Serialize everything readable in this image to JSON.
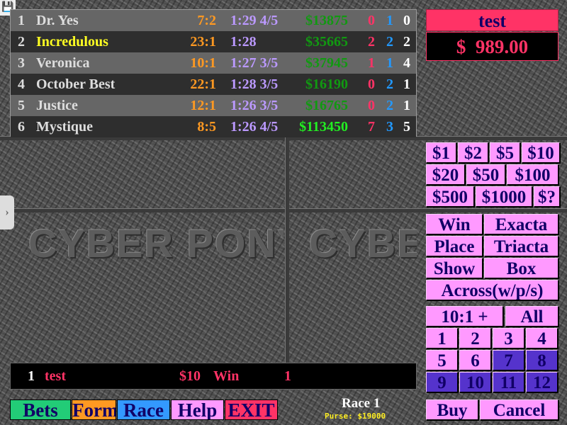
{
  "horses": [
    {
      "num": "1",
      "name": "Dr. Yes",
      "odds": "7:2",
      "time": "1:29 4/5",
      "purse": "$13875",
      "wins": "0",
      "places": "1",
      "shows": "0"
    },
    {
      "num": "2",
      "name": "Incredulous",
      "odds": "23:1",
      "time": "1:28",
      "purse": "$35665",
      "wins": "2",
      "places": "2",
      "shows": "2"
    },
    {
      "num": "3",
      "name": "Veronica",
      "odds": "10:1",
      "time": "1:27 3/5",
      "purse": "$37945",
      "wins": "1",
      "places": "1",
      "shows": "4"
    },
    {
      "num": "4",
      "name": "October Best",
      "odds": "22:1",
      "time": "1:28 3/5",
      "purse": "$16190",
      "wins": "0",
      "places": "2",
      "shows": "1"
    },
    {
      "num": "5",
      "name": "Justice",
      "odds": "12:1",
      "time": "1:26 3/5",
      "purse": "$16765",
      "wins": "0",
      "places": "2",
      "shows": "1"
    },
    {
      "num": "6",
      "name": "Mystique",
      "odds": "8:5",
      "time": "1:26 4/5",
      "purse": "$113450",
      "wins": "7",
      "places": "3",
      "shows": "5"
    }
  ],
  "player": {
    "name": "test",
    "balance": "$  989.00"
  },
  "amounts": [
    [
      "$1",
      "$2",
      "$5",
      "$10"
    ],
    [
      "$20",
      "$50",
      "$100"
    ],
    [
      "$500",
      "$1000",
      "$?"
    ]
  ],
  "bet_types": {
    "win": "Win",
    "exacta": "Exacta",
    "place": "Place",
    "triacta": "Triacta",
    "show": "Show",
    "box": "Box",
    "across": "Across(w/p/s)"
  },
  "selection": {
    "longshots": "10:1 +",
    "all": "All",
    "horses": [
      "1",
      "2",
      "3",
      "4",
      "5",
      "6",
      "7",
      "8",
      "9",
      "10",
      "11",
      "12"
    ],
    "selected": [
      "7",
      "8",
      "9",
      "10",
      "11",
      "12"
    ]
  },
  "actions": {
    "buy": "Buy",
    "cancel": "Cancel"
  },
  "bet_slip": {
    "num": "1",
    "player": "test",
    "amount": "$10",
    "type": "Win",
    "horse": "1"
  },
  "nav": {
    "bets": "Bets",
    "form": "Form",
    "race": "Race",
    "help": "Help",
    "exit": "EXIT"
  },
  "race": {
    "label": "Race 1",
    "purse": "Purse: $19000"
  },
  "logo": "CYBER PONY",
  "colors": {
    "accent": "#ff3366",
    "button": "#ff99ff",
    "selected": "#5533cc",
    "bets": "#22cc77",
    "form": "#ff9922",
    "race": "#3399ff"
  }
}
